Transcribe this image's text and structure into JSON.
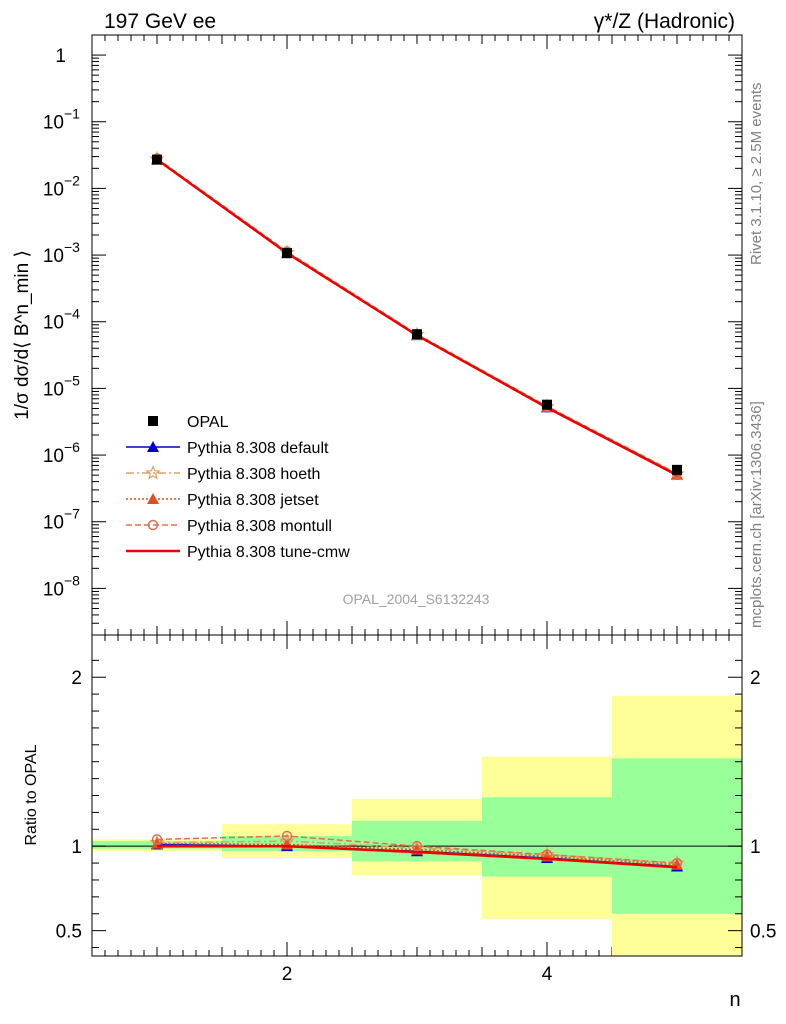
{
  "header": {
    "left_title": "197 GeV ee",
    "right_title": "γ*/Z (Hadronic)"
  },
  "side_labels": {
    "rivet": "Rivet 3.1.10, ≥ 2.5M events",
    "mcplots": "mcplots.cern.ch [arXiv:1306.3436]"
  },
  "watermark": "OPAL_2004_S6132243",
  "chart_data": [
    {
      "type": "line",
      "title": "",
      "ylabel": "1/σ dσ/d⟨ B^n_min ⟩",
      "xlabel": "",
      "yscale": "log",
      "xlim": [
        0.5,
        5.5
      ],
      "ylim": [
        2e-09,
        2
      ],
      "yticks": [
        {
          "value": 1,
          "mant": "1",
          "exp": ""
        },
        {
          "value": 0.1,
          "mant": "10",
          "exp": "−1"
        },
        {
          "value": 0.01,
          "mant": "10",
          "exp": "−2"
        },
        {
          "value": 0.001,
          "mant": "10",
          "exp": "−3"
        },
        {
          "value": 0.0001,
          "mant": "10",
          "exp": "−4"
        },
        {
          "value": 1e-05,
          "mant": "10",
          "exp": "−5"
        },
        {
          "value": 1e-06,
          "mant": "10",
          "exp": "−6"
        },
        {
          "value": 1e-07,
          "mant": "10",
          "exp": "−7"
        },
        {
          "value": 1e-08,
          "mant": "10",
          "exp": "−8"
        }
      ],
      "x": [
        1,
        2,
        3,
        4,
        5
      ],
      "data": {
        "name": "OPAL",
        "values": [
          0.027,
          0.00107,
          6.5e-05,
          5.7e-06,
          6e-07
        ]
      },
      "series": [
        {
          "name": "Pythia 8.308 default",
          "color": "#0000cc",
          "marker": "triangle",
          "dash": "",
          "values": [
            0.0272,
            0.00107,
            6.3e-05,
            5.2e-06,
            5.1e-07
          ]
        },
        {
          "name": "Pythia 8.308 hoeth",
          "color": "#e0a060",
          "marker": "star",
          "dash": "8 3 2 3",
          "values": [
            0.0275,
            0.00109,
            6.4e-05,
            5.3e-06,
            5.2e-07
          ]
        },
        {
          "name": "Pythia 8.308 jetset",
          "color": "#e05020",
          "marker": "triangle",
          "dash": "2 2",
          "values": [
            0.0274,
            0.00108,
            6.35e-05,
            5.25e-06,
            5.15e-07
          ]
        },
        {
          "name": "Pythia 8.308 montull",
          "color": "#e07050",
          "marker": "circle",
          "dash": "6 3",
          "values": [
            0.0281,
            0.00113,
            6.5e-05,
            5.4e-06,
            5.3e-07
          ]
        },
        {
          "name": "Pythia 8.308 tune-cmw",
          "color": "#ee0000",
          "marker": "none",
          "dash": "",
          "values": [
            0.0271,
            0.00107,
            6.25e-05,
            5.15e-06,
            5e-07
          ]
        }
      ]
    },
    {
      "type": "line",
      "title": "",
      "ylabel": "Ratio to OPAL",
      "xlabel": "n",
      "xlim": [
        0.5,
        5.5
      ],
      "ylim": [
        0.35,
        2.25
      ],
      "xticks": [
        {
          "value": 2,
          "label": "2"
        },
        {
          "value": 4,
          "label": "4"
        }
      ],
      "yticks": [
        {
          "value": 0.5,
          "label": "0.5"
        },
        {
          "value": 1,
          "label": "1"
        },
        {
          "value": 2,
          "label": "2"
        }
      ],
      "bands": [
        {
          "x0": 0.5,
          "x1": 1.5,
          "inner": [
            0.985,
            1.03
          ],
          "outer": [
            0.97,
            1.04
          ]
        },
        {
          "x0": 1.5,
          "x1": 2.5,
          "inner": [
            0.97,
            1.06
          ],
          "outer": [
            0.93,
            1.13
          ]
        },
        {
          "x0": 2.5,
          "x1": 3.5,
          "inner": [
            0.91,
            1.15
          ],
          "outer": [
            0.83,
            1.28
          ]
        },
        {
          "x0": 3.5,
          "x1": 4.5,
          "inner": [
            0.82,
            1.29
          ],
          "outer": [
            0.57,
            1.53
          ]
        },
        {
          "x0": 4.5,
          "x1": 5.5,
          "inner": [
            0.6,
            1.52
          ],
          "outer": [
            0.35,
            1.89
          ]
        }
      ],
      "x": [
        1,
        2,
        3,
        4,
        5
      ],
      "series": [
        {
          "name": "Pythia 8.308 default",
          "values": [
            1.01,
            1.0,
            0.97,
            0.93,
            0.88
          ]
        },
        {
          "name": "Pythia 8.308 hoeth",
          "values": [
            1.02,
            1.03,
            0.99,
            0.95,
            0.9
          ]
        },
        {
          "name": "Pythia 8.308 jetset",
          "values": [
            1.015,
            1.01,
            0.98,
            0.94,
            0.89
          ]
        },
        {
          "name": "Pythia 8.308 montull",
          "values": [
            1.04,
            1.06,
            1.0,
            0.95,
            0.9
          ]
        },
        {
          "name": "Pythia 8.308 tune-cmw",
          "values": [
            1.0,
            1.0,
            0.965,
            0.925,
            0.875
          ]
        }
      ]
    }
  ],
  "colors": {
    "band_outer": "#ffff99",
    "band_inner": "#99ff99"
  }
}
